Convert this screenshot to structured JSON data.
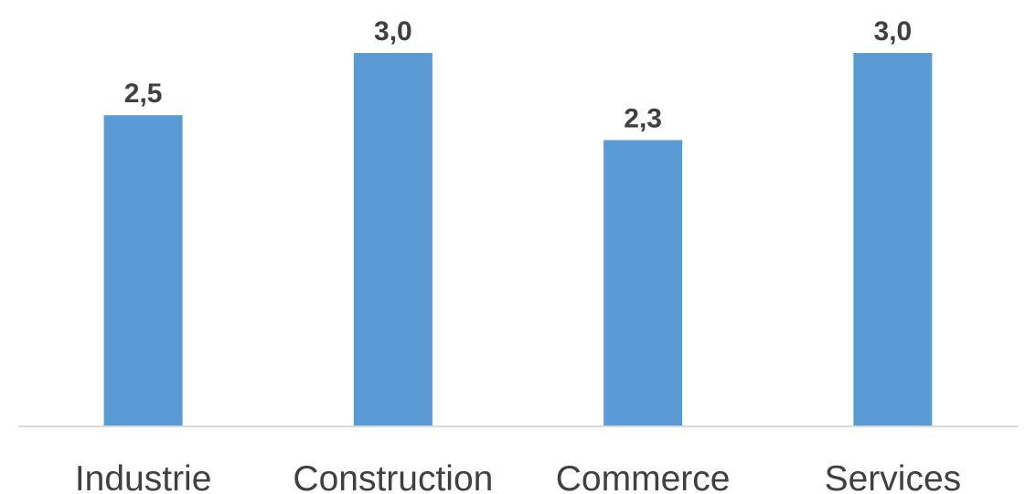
{
  "chart_data": {
    "type": "bar",
    "title": "",
    "xlabel": "",
    "ylabel": "",
    "categories": [
      "Industrie",
      "Construction",
      "Commerce",
      "Services"
    ],
    "values": [
      2.5,
      3.0,
      2.3,
      3.0
    ],
    "value_labels": [
      "2,5",
      "3,0",
      "2,3",
      "3,0"
    ],
    "ylim": [
      0,
      3.0
    ],
    "grid": false,
    "legend": "none",
    "bar_color": "#5B9BD5",
    "label_color": "#404040",
    "axis_color": "#D9D9D9"
  }
}
